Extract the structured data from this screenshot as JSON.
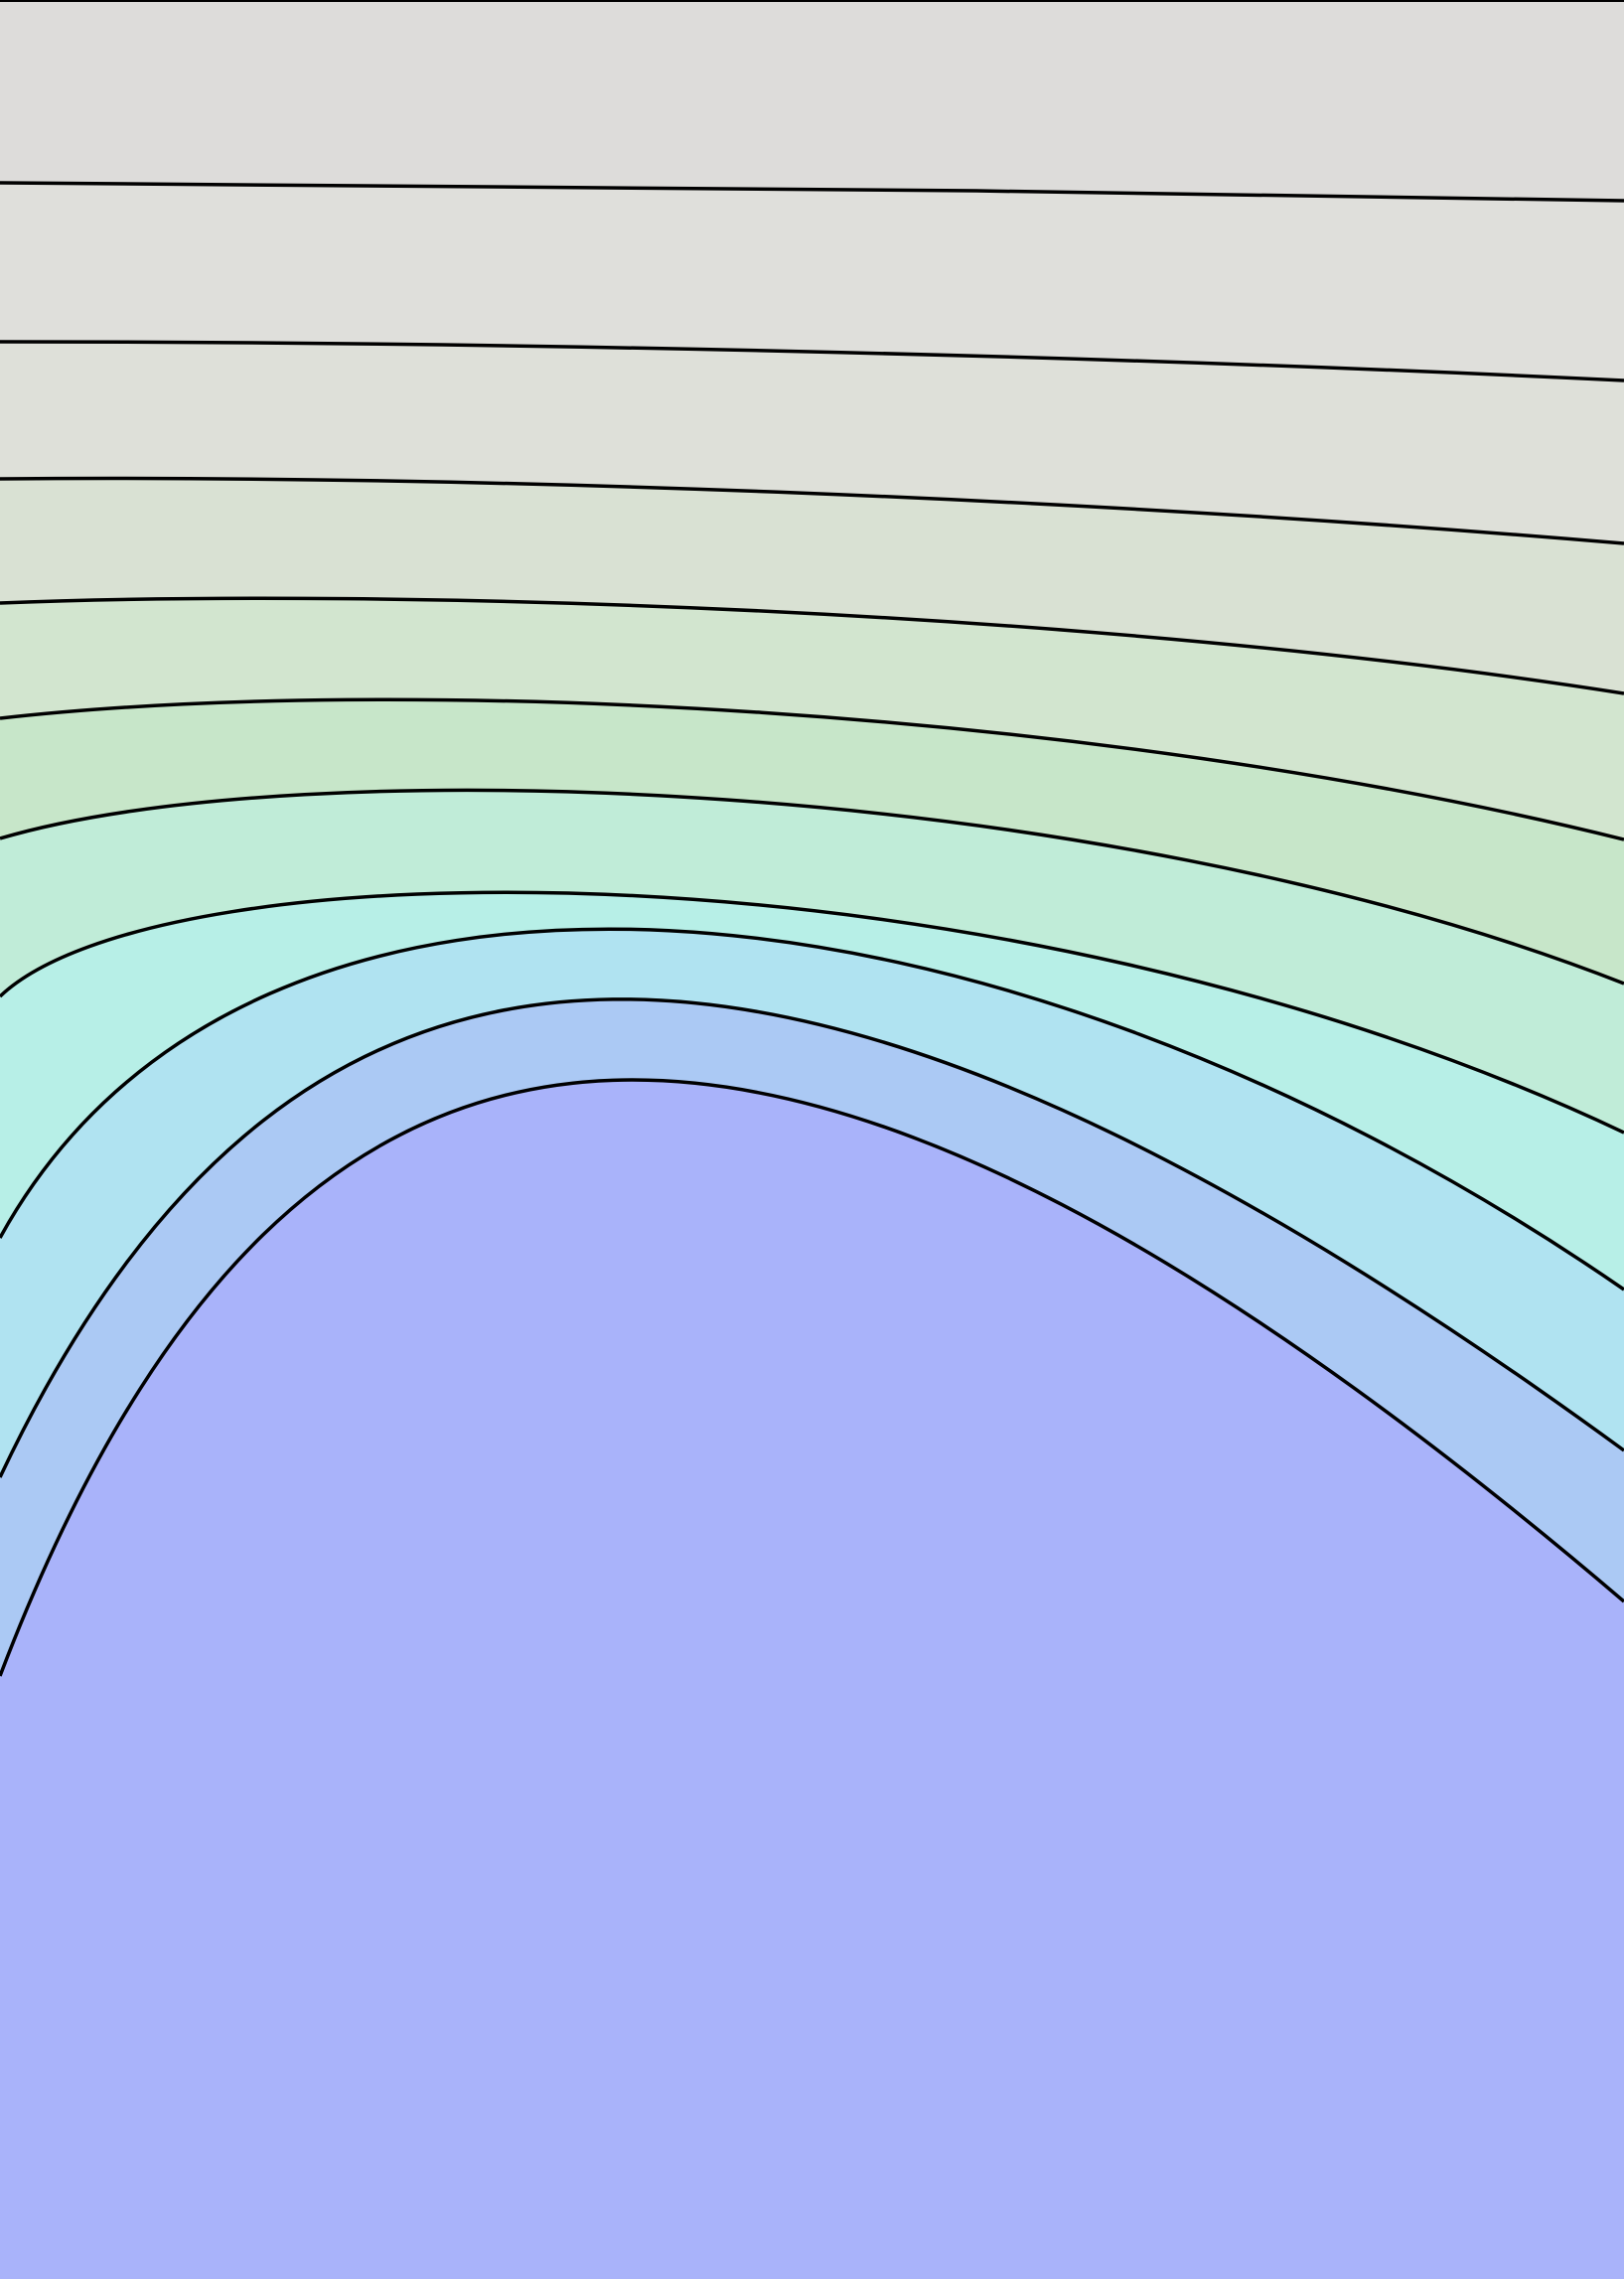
{
  "chart_data": {
    "type": "contour",
    "title": "",
    "xlabel": "",
    "ylabel": "",
    "axes_visible": false,
    "grid": false,
    "legend": "none",
    "level_count": 11,
    "bands": [
      {
        "level": 1,
        "color": "#a9b3fa"
      },
      {
        "level": 2,
        "color": "#abc9f4"
      },
      {
        "level": 3,
        "color": "#b0e3f1"
      },
      {
        "level": 4,
        "color": "#b7efe7"
      },
      {
        "level": 5,
        "color": "#c0ecd8"
      },
      {
        "level": 6,
        "color": "#c7e6c9"
      },
      {
        "level": 7,
        "color": "#d2e5cf"
      },
      {
        "level": 8,
        "color": "#d9e1d3"
      },
      {
        "level": 9,
        "color": "#dee0d9"
      },
      {
        "level": 10,
        "color": "#dfdfdb"
      },
      {
        "level": 11,
        "color": "#dddcda"
      }
    ],
    "line_color": "#000000"
  }
}
